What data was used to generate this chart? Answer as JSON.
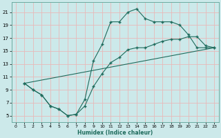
{
  "xlabel": "Humidex (Indice chaleur)",
  "xlim": [
    -0.5,
    23.5
  ],
  "ylim": [
    4.0,
    22.5
  ],
  "xtick_vals": [
    0,
    1,
    2,
    3,
    4,
    5,
    6,
    7,
    8,
    9,
    10,
    11,
    12,
    13,
    14,
    15,
    16,
    17,
    18,
    19,
    20,
    21,
    22,
    23
  ],
  "ytick_vals": [
    5,
    7,
    9,
    11,
    13,
    15,
    17,
    19,
    21
  ],
  "bg_color": "#cce9ea",
  "grid_color": "#e8b8b8",
  "line_color": "#1e6b5c",
  "curve1_x": [
    1,
    2,
    3,
    4,
    5,
    6,
    7,
    8,
    9,
    10,
    11,
    12,
    13,
    14,
    15,
    16,
    17,
    18,
    19,
    20,
    21,
    22,
    23
  ],
  "curve1_y": [
    10,
    9,
    8.2,
    6.5,
    6.0,
    5.0,
    5.2,
    7.5,
    13.5,
    16.0,
    19.5,
    19.5,
    21.0,
    21.5,
    20.0,
    19.5,
    19.5,
    19.5,
    19.0,
    17.5,
    15.5,
    15.5,
    15.5
  ],
  "curve2_x": [
    1,
    2,
    3,
    4,
    5,
    6,
    7,
    8,
    9,
    10,
    11,
    12,
    13,
    14,
    15,
    16,
    17,
    18,
    19,
    20,
    21,
    22,
    23
  ],
  "curve2_y": [
    10,
    9,
    8.2,
    6.5,
    6.0,
    5.0,
    5.2,
    6.5,
    9.5,
    11.5,
    13.2,
    14.0,
    15.2,
    15.5,
    15.5,
    16.0,
    16.5,
    16.8,
    16.8,
    17.2,
    17.2,
    15.8,
    15.5
  ],
  "curve3_x": [
    1,
    23
  ],
  "curve3_y": [
    10,
    15.5
  ]
}
